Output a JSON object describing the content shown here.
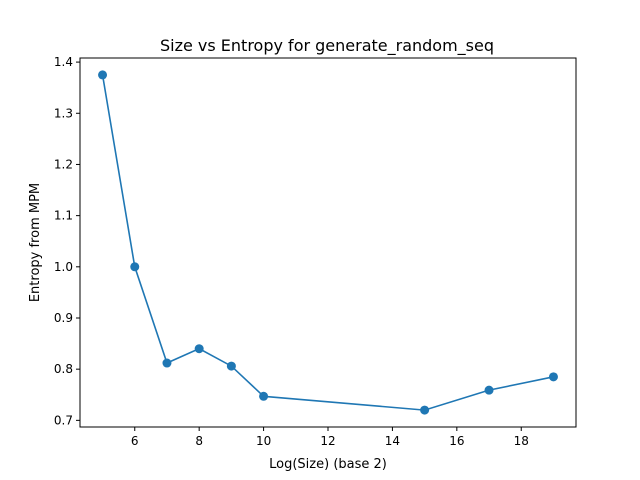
{
  "chart_data": {
    "type": "line",
    "title": "Size vs Entropy for generate_random_seq",
    "xlabel": "Log(Size) (base 2)",
    "ylabel": "Entropy from MPM",
    "xlim": [
      4.3,
      19.7
    ],
    "ylim": [
      0.687,
      1.408
    ],
    "xticks": [
      6,
      8,
      10,
      12,
      14,
      16,
      18
    ],
    "yticks": [
      0.7,
      0.8,
      0.9,
      1.0,
      1.1,
      1.2,
      1.3,
      1.4
    ],
    "ytick_labels": [
      "0.7",
      "0.8",
      "0.9",
      "1.0",
      "1.1",
      "1.2",
      "1.3",
      "1.4"
    ],
    "grid": false,
    "line_color": "#1f77b4",
    "marker": "circle",
    "series": [
      {
        "x": [
          5,
          6,
          7,
          8,
          9,
          10,
          15,
          17,
          19
        ],
        "y": [
          1.375,
          1.0,
          0.812,
          0.84,
          0.806,
          0.747,
          0.72,
          0.759,
          0.785
        ]
      }
    ]
  }
}
